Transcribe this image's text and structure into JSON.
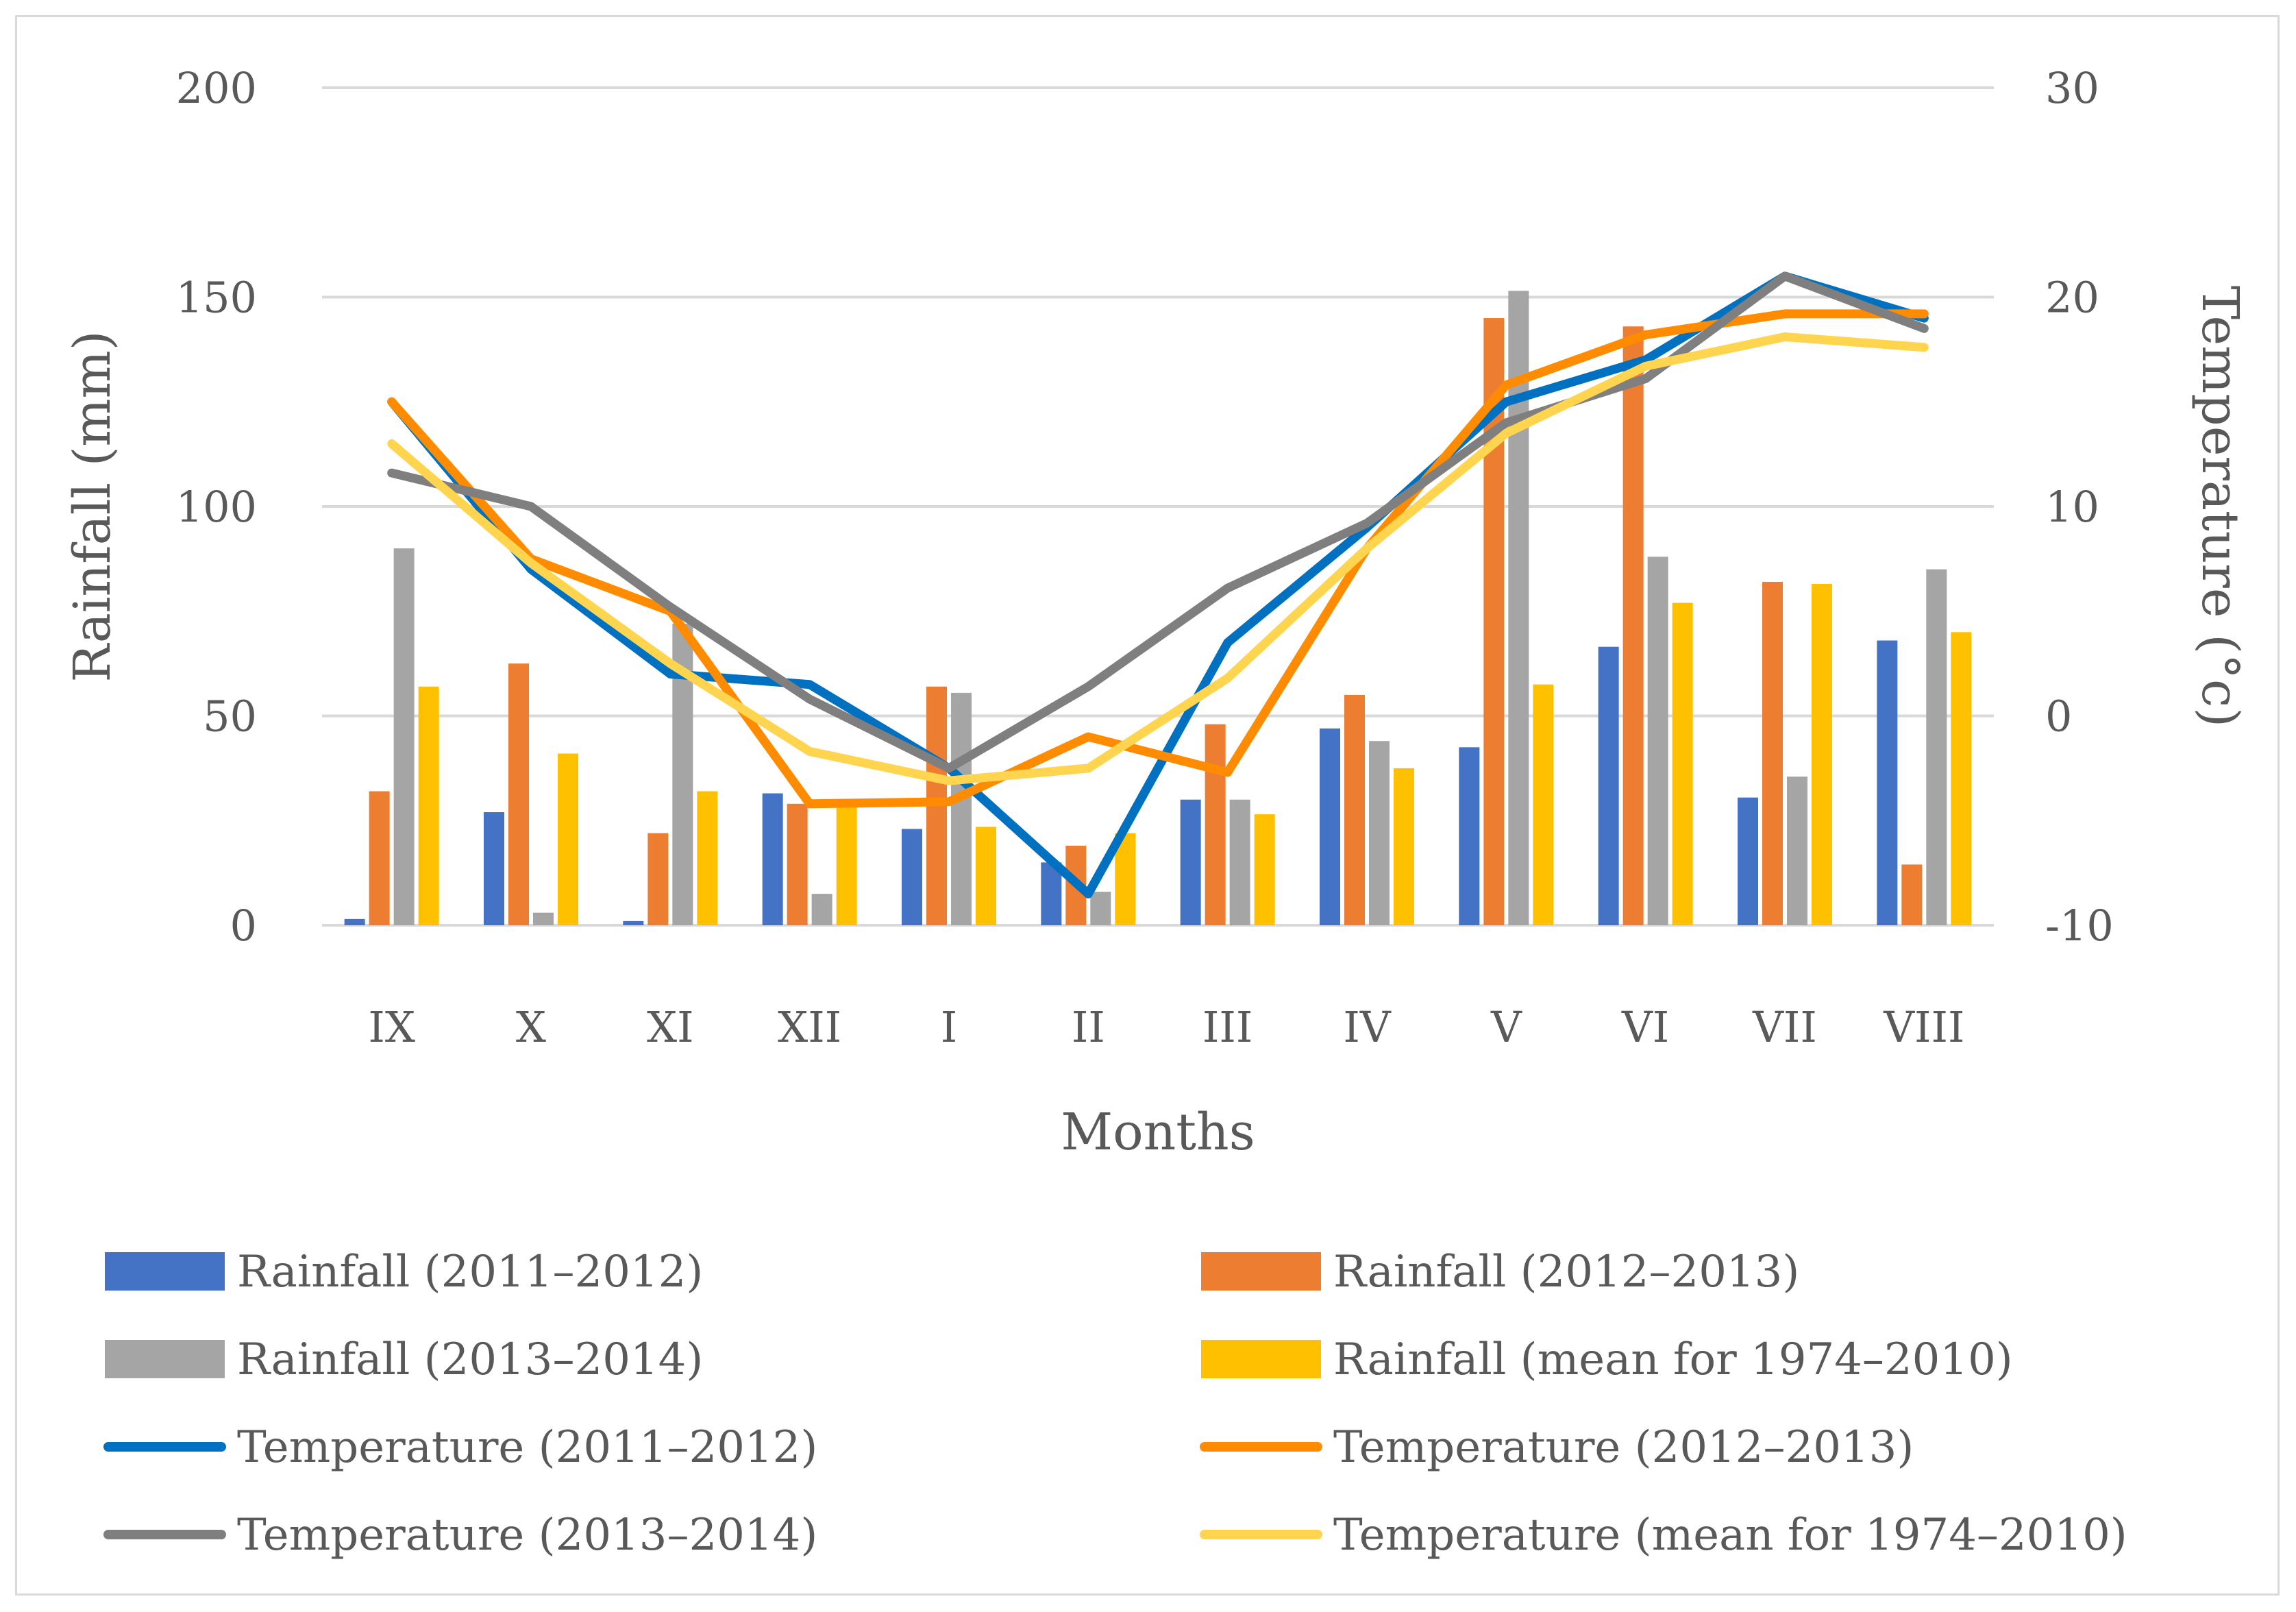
{
  "chart_data": {
    "type": "bar",
    "categories": [
      "IX",
      "X",
      "XI",
      "XII",
      "I",
      "II",
      "III",
      "IV",
      "V",
      "VI",
      "VII",
      "VIII"
    ],
    "xlabel": "Months",
    "ylabel": "Rainfall (mm)",
    "y2label": "Temperature (°c)",
    "ylim": [
      0,
      200
    ],
    "y2lim": [
      -10,
      30
    ],
    "yticks": [
      "0",
      "50",
      "100",
      "150",
      "200"
    ],
    "y2ticks": [
      "-10",
      "0",
      "10",
      "20",
      "30"
    ],
    "grid": true,
    "legend_position": "bottom",
    "bar_series": [
      {
        "name": "Rainfall (2011–2012)",
        "color": "#4472C4",
        "values": [
          1.5,
          27,
          1,
          31.5,
          23,
          15,
          30,
          47,
          42.5,
          66.5,
          30.5,
          68
        ]
      },
      {
        "name": "Rainfall (2012–2013)",
        "color": "#ED7D31",
        "values": [
          32,
          62.5,
          22,
          29,
          57,
          19,
          48,
          55,
          145,
          143,
          82,
          14.5
        ]
      },
      {
        "name": "Rainfall (2013–2014)",
        "color": "#A5A5A5",
        "values": [
          90,
          3,
          72,
          7.5,
          55.5,
          8,
          30,
          44,
          151.5,
          88,
          35.5,
          85
        ]
      },
      {
        "name": "Rainfall (mean for 1974–2010)",
        "color": "#FFC000",
        "values": [
          57,
          41,
          32,
          29,
          23.5,
          22,
          26.5,
          37.5,
          57.5,
          77,
          81.5,
          70
        ]
      }
    ],
    "line_series": [
      {
        "name": "Temperature (2011–2012)",
        "color": "#0070C0",
        "values": [
          15,
          7,
          2,
          1.5,
          -2.5,
          -8.5,
          3.5,
          9,
          15,
          17,
          21,
          19
        ]
      },
      {
        "name": "Temperature (2012–2013)",
        "color": "#FF8C00",
        "values": [
          15,
          7.5,
          5,
          -4.2,
          -4.1,
          -1,
          -2.7,
          8,
          15.8,
          18.2,
          19.2,
          19.2
        ]
      },
      {
        "name": "Temperature (2013–2014)",
        "color": "#7F7F7F",
        "values": [
          11.6,
          10,
          5.2,
          0.8,
          -2.5,
          1.4,
          6.1,
          9.2,
          14,
          16.1,
          21,
          18.5
        ]
      },
      {
        "name": "Temperature (mean for 1974–2010)",
        "color": "#FFD54F",
        "values": [
          13,
          7.3,
          2.5,
          -1.7,
          -3.1,
          -2.5,
          1.8,
          8,
          13.5,
          16.7,
          18.1,
          17.6
        ]
      }
    ]
  }
}
